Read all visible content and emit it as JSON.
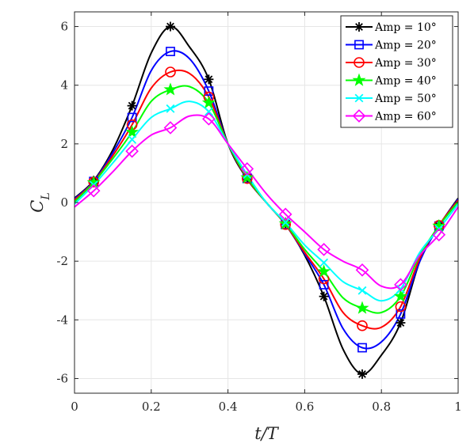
{
  "chart_data": {
    "type": "line",
    "xlabel": "t/T",
    "ylabel": "C_L",
    "xlim": [
      0,
      1
    ],
    "ylim": [
      -6.5,
      6.5
    ],
    "xticks": [
      0,
      0.2,
      0.4,
      0.6,
      0.8,
      1
    ],
    "xtick_labels": [
      "0",
      "0.2",
      "0.4",
      "0.6",
      "0.8",
      "1"
    ],
    "yticks": [
      -6,
      -4,
      -2,
      0,
      2,
      4,
      6
    ],
    "ytick_labels": [
      "-6",
      "-4",
      "-2",
      "0",
      "2",
      "4",
      "6"
    ],
    "grid": true,
    "legend_position": "top-right",
    "marker_x": [
      0.05,
      0.15,
      0.25,
      0.35,
      0.45,
      0.55,
      0.65,
      0.75,
      0.85,
      0.95
    ],
    "series": [
      {
        "name": "Amp = 10°",
        "color": "#000000",
        "marker": "asterisk",
        "curve_x": [
          0,
          0.05,
          0.1,
          0.15,
          0.2,
          0.25,
          0.3,
          0.35,
          0.4,
          0.45,
          0.5,
          0.55,
          0.6,
          0.65,
          0.7,
          0.75,
          0.8,
          0.85,
          0.9,
          0.95,
          1
        ],
        "curve_y": [
          0.15,
          0.75,
          1.8,
          3.3,
          5.1,
          6.0,
          5.3,
          4.2,
          2.0,
          0.8,
          0.0,
          -0.75,
          -1.8,
          -3.2,
          -5.0,
          -5.85,
          -5.2,
          -4.1,
          -2.0,
          -0.8,
          0.15
        ],
        "marker_y": [
          0.75,
          3.3,
          6.0,
          4.2,
          0.8,
          -0.75,
          -3.2,
          -5.85,
          -4.1,
          -0.8
        ]
      },
      {
        "name": "Amp = 20°",
        "color": "#0000FF",
        "marker": "square",
        "curve_x": [
          0,
          0.05,
          0.1,
          0.15,
          0.2,
          0.25,
          0.3,
          0.35,
          0.4,
          0.45,
          0.5,
          0.55,
          0.6,
          0.65,
          0.7,
          0.75,
          0.8,
          0.85,
          0.9,
          0.95,
          1
        ],
        "curve_y": [
          0.12,
          0.72,
          1.7,
          2.9,
          4.5,
          5.15,
          4.9,
          3.8,
          2.0,
          0.82,
          0.0,
          -0.75,
          -1.75,
          -2.8,
          -4.3,
          -4.95,
          -4.75,
          -3.8,
          -2.0,
          -0.8,
          0.12
        ],
        "marker_y": [
          0.72,
          2.9,
          5.15,
          3.8,
          0.82,
          -0.75,
          -2.8,
          -4.95,
          -3.8,
          -0.8
        ]
      },
      {
        "name": "Amp = 30°",
        "color": "#FF0000",
        "marker": "circle",
        "curve_x": [
          0,
          0.05,
          0.1,
          0.15,
          0.2,
          0.25,
          0.3,
          0.35,
          0.4,
          0.45,
          0.5,
          0.55,
          0.6,
          0.65,
          0.7,
          0.75,
          0.8,
          0.85,
          0.9,
          0.95,
          1
        ],
        "curve_y": [
          0.08,
          0.7,
          1.6,
          2.65,
          3.9,
          4.45,
          4.4,
          3.6,
          2.0,
          0.82,
          0.0,
          -0.75,
          -1.7,
          -2.6,
          -3.75,
          -4.2,
          -4.25,
          -3.55,
          -1.9,
          -0.78,
          0.08
        ],
        "marker_y": [
          0.7,
          2.65,
          4.45,
          3.6,
          0.82,
          -0.75,
          -2.6,
          -4.2,
          -3.55,
          -0.78
        ]
      },
      {
        "name": "Amp = 40°",
        "color": "#00FF00",
        "marker": "star",
        "curve_x": [
          0,
          0.05,
          0.1,
          0.15,
          0.2,
          0.25,
          0.3,
          0.35,
          0.4,
          0.45,
          0.5,
          0.55,
          0.6,
          0.65,
          0.7,
          0.75,
          0.8,
          0.85,
          0.9,
          0.95,
          1
        ],
        "curve_y": [
          0.02,
          0.68,
          1.5,
          2.4,
          3.45,
          3.85,
          3.95,
          3.4,
          2.0,
          0.85,
          0.0,
          -0.72,
          -1.6,
          -2.35,
          -3.25,
          -3.6,
          -3.75,
          -3.2,
          -1.8,
          -0.8,
          0.02
        ],
        "marker_y": [
          0.68,
          2.4,
          3.85,
          3.4,
          0.85,
          -0.72,
          -2.35,
          -3.6,
          -3.2,
          -0.8
        ]
      },
      {
        "name": "Amp = 50°",
        "color": "#00FFFF",
        "marker": "x",
        "curve_x": [
          0,
          0.05,
          0.1,
          0.15,
          0.2,
          0.25,
          0.3,
          0.35,
          0.4,
          0.45,
          0.5,
          0.55,
          0.6,
          0.65,
          0.7,
          0.75,
          0.8,
          0.85,
          0.9,
          0.95,
          1
        ],
        "curve_y": [
          -0.05,
          0.6,
          1.35,
          2.15,
          2.9,
          3.2,
          3.45,
          3.1,
          2.0,
          0.95,
          0.0,
          -0.68,
          -1.45,
          -2.05,
          -2.7,
          -3.0,
          -3.35,
          -2.95,
          -1.7,
          -0.9,
          -0.05
        ],
        "marker_y": [
          0.6,
          2.15,
          3.2,
          3.1,
          0.95,
          -0.68,
          -2.05,
          -3.0,
          -2.95,
          -0.9
        ]
      },
      {
        "name": "Amp = 60°",
        "color": "#FF00FF",
        "marker": "diamond",
        "curve_x": [
          0,
          0.05,
          0.1,
          0.15,
          0.2,
          0.25,
          0.3,
          0.35,
          0.4,
          0.45,
          0.5,
          0.55,
          0.6,
          0.65,
          0.7,
          0.75,
          0.8,
          0.85,
          0.9,
          0.95,
          1
        ],
        "curve_y": [
          -0.15,
          0.4,
          1.05,
          1.75,
          2.3,
          2.55,
          2.95,
          2.85,
          2.0,
          1.15,
          0.3,
          -0.4,
          -1.0,
          -1.6,
          -2.0,
          -2.3,
          -2.85,
          -2.8,
          -1.8,
          -1.1,
          -0.15
        ],
        "marker_y": [
          0.4,
          1.75,
          2.55,
          2.85,
          1.15,
          -0.4,
          -1.6,
          -2.3,
          -2.8,
          -1.1
        ]
      }
    ]
  }
}
